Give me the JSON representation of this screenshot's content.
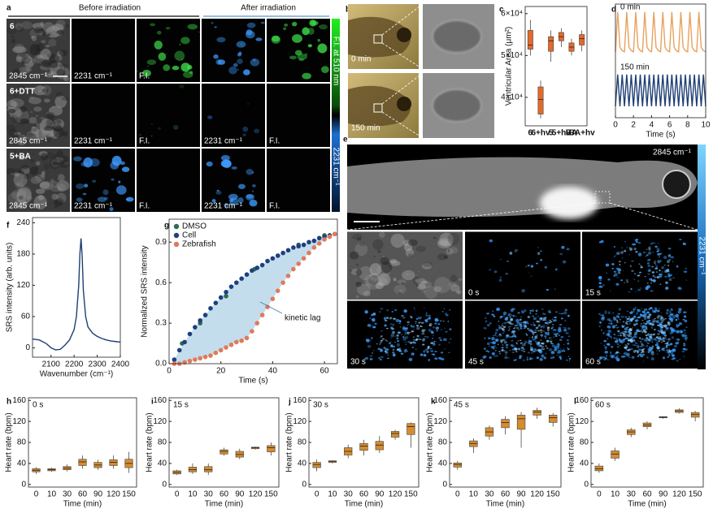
{
  "panel_letters": [
    "a",
    "b",
    "c",
    "d",
    "e",
    "f",
    "g",
    "h",
    "i",
    "j",
    "k",
    "l"
  ],
  "panel_a": {
    "headers": [
      "Before irradiation",
      "After irradiation"
    ],
    "rows": [
      {
        "label": "6",
        "cells": [
          "2845 cm⁻¹",
          "2231 cm⁻¹",
          "F.I."
        ]
      },
      {
        "label": "6+DTT",
        "cells": [
          "2845 cm⁻¹",
          "2231 cm⁻¹",
          "F.I.",
          "2231 cm⁻¹",
          "F.I."
        ]
      },
      {
        "label": "5+BA",
        "cells": [
          "2845 cm⁻¹",
          "2231 cm⁻¹",
          "F.I.",
          "2231 cm⁻¹",
          "F.I."
        ]
      }
    ],
    "colorbars": [
      "F.I. at 510 nm",
      "2231 cm⁻¹"
    ]
  },
  "panel_b": {
    "labels": [
      "0 min",
      "150 min"
    ]
  },
  "panel_e": {
    "top_label": "2845 cm⁻¹",
    "colorbar": "2231 cm⁻¹",
    "tiles": [
      "0 s",
      "15 s",
      "30 s",
      "45 s",
      "60 s"
    ]
  },
  "chart_data": [
    {
      "type": "box",
      "ylabel": "Ventricular Area (μm²)",
      "categories": [
        "6",
        "6+hv",
        "5",
        "5+hv",
        "BA",
        "BA+hv"
      ],
      "values": [
        [
          50000,
          51500,
          52500,
          56000,
          58500
        ],
        [
          35000,
          36000,
          39500,
          42500,
          44000
        ],
        [
          48500,
          51000,
          53500,
          54500,
          56000
        ],
        [
          52000,
          53500,
          54500,
          55500,
          56500
        ],
        [
          50000,
          51000,
          52000,
          53000,
          54000
        ],
        [
          51000,
          52500,
          54000,
          55000,
          56000
        ]
      ],
      "color": "#e46a2a",
      "ylim": [
        33200,
        61700
      ],
      "yticks": [
        {
          "value": 40000,
          "label": "4×10⁴"
        },
        {
          "value": 50000,
          "label": "5×10⁴"
        },
        {
          "value": 60000,
          "label": "6×10⁴"
        }
      ]
    },
    {
      "type": "line",
      "xlabel": "Time (s)",
      "x": [
        0,
        0.25,
        0.5,
        0.75,
        1,
        1.25,
        1.5,
        1.75,
        2,
        2.25,
        2.5,
        2.75,
        3,
        3.25,
        3.5,
        3.75,
        4,
        4.25,
        4.5,
        4.75,
        5,
        5.25,
        5.5,
        5.75,
        6,
        6.25,
        6.5,
        6.75,
        7,
        7.25,
        7.5,
        7.75,
        8,
        8.25,
        8.5,
        8.75,
        9,
        9.25,
        9.5,
        9.75,
        10
      ],
      "series": [
        {
          "name": "0 min",
          "color": "#e8a25e",
          "values": [
            0.58,
            0.93,
            0.62,
            0.59,
            0.58,
            0.93,
            0.62,
            0.59,
            0.58,
            0.93,
            0.62,
            0.59,
            0.58,
            0.93,
            0.62,
            0.59,
            0.58,
            0.93,
            0.62,
            0.59,
            0.58,
            0.93,
            0.62,
            0.59,
            0.58,
            0.93,
            0.62,
            0.59,
            0.58,
            0.93,
            0.62,
            0.59,
            0.58,
            0.93,
            0.62,
            0.59,
            0.58,
            0.93,
            0.62,
            0.59,
            0.58
          ]
        },
        {
          "name": "150 min",
          "color": "#1f3f73",
          "values": [
            0.1,
            0.38,
            0.1,
            0.38,
            0.1,
            0.38,
            0.1,
            0.38,
            0.1,
            0.38,
            0.1,
            0.38,
            0.1,
            0.38,
            0.1,
            0.38,
            0.1,
            0.38,
            0.1,
            0.38,
            0.1,
            0.38,
            0.1,
            0.38,
            0.1,
            0.38,
            0.1,
            0.38,
            0.1,
            0.38,
            0.1,
            0.38,
            0.1,
            0.38,
            0.1,
            0.38,
            0.1,
            0.38,
            0.1,
            0.38,
            0.1
          ]
        }
      ],
      "xlim": [
        0,
        10
      ],
      "xticks": [
        0,
        2,
        4,
        6,
        8,
        10
      ],
      "ylim": [
        0,
        1
      ]
    },
    {
      "type": "line",
      "xlabel": "Wavenumber (cm⁻¹)",
      "ylabel": "SRS intensity (arb. units)",
      "color": "#1f3f73",
      "x": [
        2020,
        2050,
        2080,
        2100,
        2120,
        2140,
        2160,
        2180,
        2200,
        2210,
        2220,
        2225,
        2230,
        2235,
        2240,
        2250,
        2260,
        2280,
        2300,
        2320,
        2340,
        2360,
        2380,
        2400
      ],
      "values": [
        17,
        15,
        8,
        0,
        -4,
        -3,
        5,
        15,
        35,
        60,
        120,
        180,
        210,
        175,
        110,
        60,
        40,
        28,
        22,
        18,
        15,
        13,
        12,
        11
      ],
      "xlim": [
        2020,
        2400
      ],
      "xticks": [
        2100,
        2200,
        2300,
        2400
      ],
      "ylim": [
        -18,
        250
      ],
      "yticks": [
        0,
        60,
        120,
        180,
        240
      ]
    },
    {
      "type": "scatter",
      "xlabel": "Time (s)",
      "ylabel": "Normalized SRS intensity",
      "annotation": "kinetic lag",
      "legend": "upper left",
      "series": [
        {
          "name": "DMSO",
          "color": "#2e6b4f",
          "x": [
            5,
            12,
            22,
            33,
            50,
            60
          ],
          "values": [
            0.15,
            0.3,
            0.5,
            0.7,
            0.88,
            0.95
          ]
        },
        {
          "name": "Cell",
          "color": "#1f3f80",
          "x": [
            2,
            4,
            6,
            8,
            10,
            12,
            14,
            16,
            18,
            20,
            22,
            24,
            26,
            28,
            30,
            32,
            34,
            36,
            38,
            40,
            42,
            44,
            46,
            48,
            50,
            52,
            54,
            56,
            58,
            60,
            62,
            64
          ],
          "values": [
            0.03,
            0.1,
            0.16,
            0.22,
            0.27,
            0.32,
            0.36,
            0.41,
            0.45,
            0.49,
            0.53,
            0.57,
            0.6,
            0.63,
            0.66,
            0.69,
            0.71,
            0.73,
            0.76,
            0.78,
            0.8,
            0.82,
            0.84,
            0.86,
            0.87,
            0.88,
            0.9,
            0.91,
            0.93,
            0.94,
            0.95,
            0.96
          ]
        },
        {
          "name": "Zebrafish",
          "color": "#e07a5a",
          "x": [
            2,
            4,
            6,
            8,
            10,
            12,
            14,
            16,
            18,
            20,
            22,
            24,
            26,
            28,
            30,
            32,
            34,
            36,
            38,
            40,
            42,
            44,
            46,
            48,
            50,
            52,
            54,
            56,
            58,
            60,
            62,
            64
          ],
          "values": [
            0,
            0,
            0.01,
            0.02,
            0.03,
            0.04,
            0.05,
            0.06,
            0.08,
            0.1,
            0.12,
            0.14,
            0.16,
            0.17,
            0.19,
            0.24,
            0.3,
            0.36,
            0.42,
            0.48,
            0.54,
            0.6,
            0.65,
            0.7,
            0.74,
            0.78,
            0.82,
            0.86,
            0.89,
            0.92,
            0.94,
            0.96
          ]
        }
      ],
      "xlim": [
        0,
        65
      ],
      "xticks": [
        0,
        20,
        40,
        60
      ],
      "ylim": [
        0,
        1.07
      ],
      "yticks": [
        {
          "value": 0,
          "label": "0.0"
        },
        0.3,
        0.6,
        0.9
      ]
    },
    {
      "type": "box",
      "inset_label": "0 s",
      "xlabel": "Time (min)",
      "ylabel": "Heart rate (bpm)",
      "categories": [
        "0",
        "10",
        "30",
        "60",
        "90",
        "120",
        "150"
      ],
      "color": "#d58c2e",
      "values": [
        [
          20,
          24,
          27,
          30,
          33
        ],
        [
          24,
          26,
          28,
          30,
          32
        ],
        [
          25,
          28,
          31,
          34,
          38
        ],
        [
          30,
          36,
          43,
          48,
          55
        ],
        [
          28,
          32,
          37,
          42,
          47
        ],
        [
          30,
          36,
          42,
          47,
          55
        ],
        [
          22,
          32,
          40,
          48,
          62
        ]
      ],
      "ylim": [
        -5,
        165
      ],
      "yticks": [
        0,
        40,
        80,
        120,
        160
      ]
    },
    {
      "type": "box",
      "inset_label": "15 s",
      "xlabel": "Time (min)",
      "ylabel": "Heart rate (bpm)",
      "categories": [
        "0",
        "10",
        "30",
        "60",
        "90",
        "120",
        "150"
      ],
      "color": "#d58c2e",
      "values": [
        [
          18,
          20,
          23,
          26,
          28
        ],
        [
          20,
          24,
          28,
          33,
          40
        ],
        [
          18,
          24,
          28,
          34,
          40
        ],
        [
          55,
          58,
          63,
          66,
          70
        ],
        [
          48,
          52,
          57,
          63,
          68
        ],
        [
          66,
          68,
          70,
          71,
          72
        ],
        [
          55,
          62,
          70,
          74,
          80
        ]
      ],
      "ylim": [
        -5,
        165
      ],
      "yticks": [
        0,
        40,
        80,
        120,
        160
      ]
    },
    {
      "type": "box",
      "inset_label": "30 s",
      "xlabel": "Time (min)",
      "ylabel": "Heart rate (bpm)",
      "categories": [
        "0",
        "10",
        "30",
        "60",
        "90",
        "120",
        "150"
      ],
      "color": "#d58c2e",
      "values": [
        [
          25,
          32,
          38,
          42,
          48
        ],
        [
          40,
          42,
          44,
          45,
          46
        ],
        [
          50,
          56,
          63,
          70,
          76
        ],
        [
          55,
          65,
          73,
          78,
          85
        ],
        [
          60,
          66,
          75,
          82,
          92
        ],
        [
          85,
          90,
          97,
          101,
          104
        ],
        [
          70,
          95,
          110,
          116,
          118
        ]
      ],
      "ylim": [
        -5,
        165
      ],
      "yticks": [
        0,
        40,
        80,
        120,
        160
      ]
    },
    {
      "type": "box",
      "inset_label": "45 s",
      "xlabel": "Time (min)",
      "ylabel": "Heart rate (bpm)",
      "categories": [
        "0",
        "10",
        "30",
        "60",
        "90",
        "120",
        "150"
      ],
      "color": "#d58c2e",
      "values": [
        [
          28,
          33,
          38,
          41,
          45
        ],
        [
          60,
          72,
          78,
          83,
          88
        ],
        [
          85,
          92,
          100,
          108,
          112
        ],
        [
          95,
          108,
          118,
          124,
          130
        ],
        [
          70,
          105,
          125,
          132,
          138
        ],
        [
          125,
          132,
          138,
          141,
          146
        ],
        [
          110,
          118,
          127,
          132,
          136
        ]
      ],
      "ylim": [
        -5,
        165
      ],
      "yticks": [
        0,
        40,
        80,
        120,
        160
      ]
    },
    {
      "type": "box",
      "inset_label": "60 s",
      "xlabel": "Time (min)",
      "ylabel": "Heart rate (bpm)",
      "categories": [
        "0",
        "10",
        "30",
        "60",
        "90",
        "120",
        "150"
      ],
      "color": "#d58c2e",
      "values": [
        [
          22,
          26,
          30,
          35,
          40
        ],
        [
          45,
          50,
          58,
          64,
          70
        ],
        [
          90,
          95,
          100,
          104,
          108
        ],
        [
          105,
          110,
          113,
          117,
          120
        ],
        [
          125,
          127,
          128,
          129,
          130
        ],
        [
          135,
          137,
          140,
          142,
          145
        ],
        [
          120,
          128,
          133,
          137,
          140
        ]
      ],
      "ylim": [
        -5,
        165
      ],
      "yticks": [
        0,
        40,
        80,
        120,
        160
      ]
    }
  ]
}
